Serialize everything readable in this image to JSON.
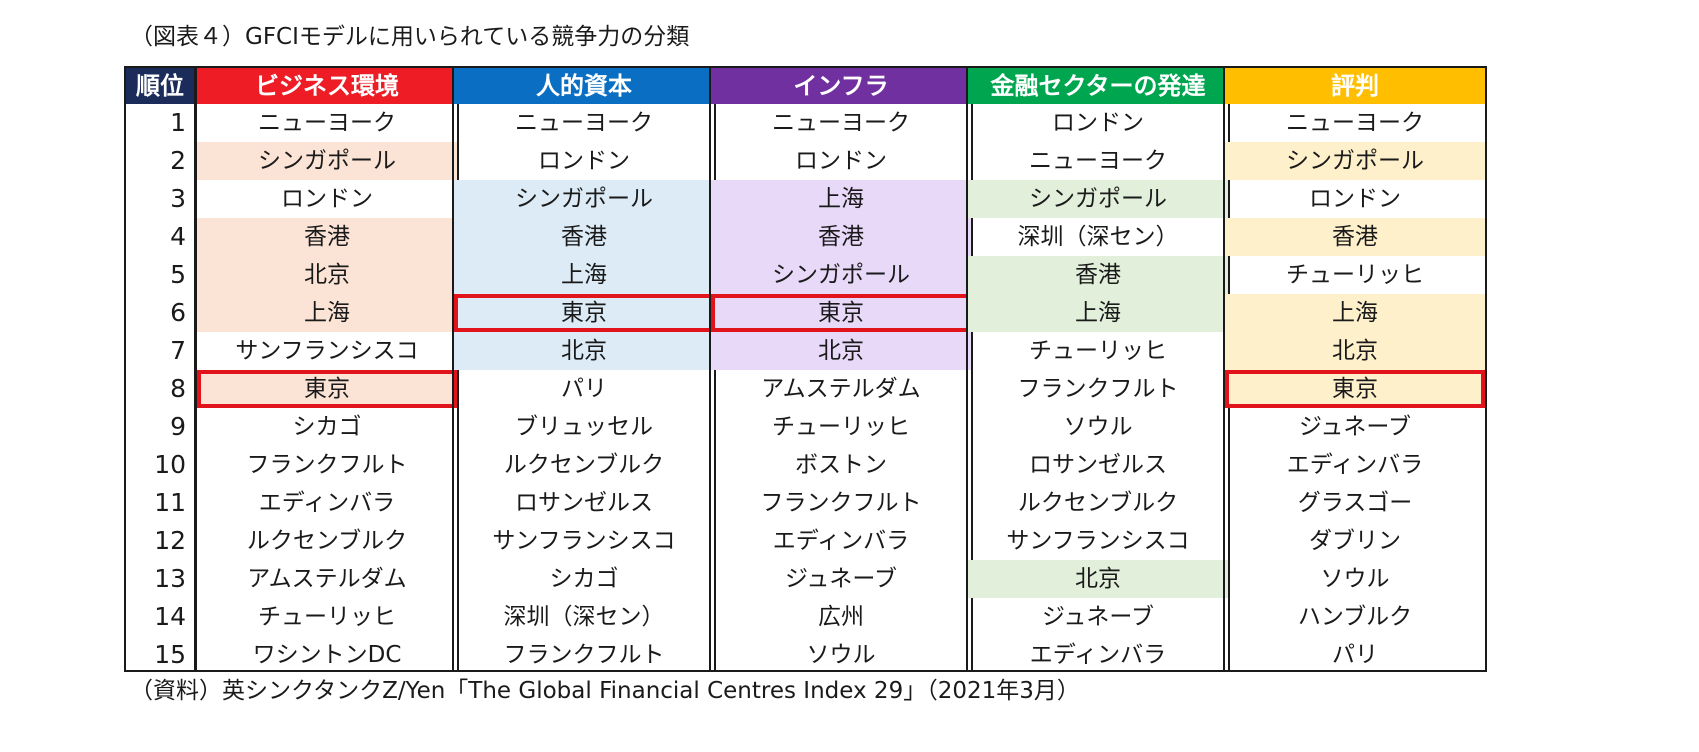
{
  "title": "（図表４）GFCIモデルに用いられている競争力の分類",
  "source": "（資料）英シンクタンクZ/Yen「The Global Financial Centres Index 29」（2021年3月）",
  "rank_header": "順位",
  "ranks": [
    "1",
    "2",
    "3",
    "4",
    "5",
    "6",
    "7",
    "8",
    "9",
    "10",
    "11",
    "12",
    "13",
    "14",
    "15"
  ],
  "columns": [
    {
      "header": "ビジネス環境",
      "header_color": "#ee1c25",
      "shade_color": "#fbe4d6",
      "shaded_ranks": [
        2,
        4,
        5,
        6,
        8
      ],
      "tokyo_rank": 8,
      "cities": [
        "ニューヨーク",
        "シンガポール",
        "ロンドン",
        "香港",
        "北京",
        "上海",
        "サンフランシスコ",
        "東京",
        "シカゴ",
        "フランクフルト",
        "エディンバラ",
        "ルクセンブルク",
        "アムステルダム",
        "チューリッヒ",
        "ワシントンDC"
      ]
    },
    {
      "header": "人的資本",
      "header_color": "#0a6fc2",
      "shade_color": "#dcebf6",
      "shaded_ranks": [
        3,
        4,
        5,
        6,
        7
      ],
      "tokyo_rank": 6,
      "cities": [
        "ニューヨーク",
        "ロンドン",
        "シンガポール",
        "香港",
        "上海",
        "東京",
        "北京",
        "パリ",
        "ブリュッセル",
        "ルクセンブルク",
        "ロサンゼルス",
        "サンフランシスコ",
        "シカゴ",
        "深圳（深セン）",
        "フランクフルト"
      ]
    },
    {
      "header": "インフラ",
      "header_color": "#7030a0",
      "shade_color": "#e8d9f9",
      "shaded_ranks": [
        3,
        4,
        5,
        6,
        7
      ],
      "tokyo_rank": 6,
      "cities": [
        "ニューヨーク",
        "ロンドン",
        "上海",
        "香港",
        "シンガポール",
        "東京",
        "北京",
        "アムステルダム",
        "チューリッヒ",
        "ボストン",
        "フランクフルト",
        "エディンバラ",
        "ジュネーブ",
        "広州",
        "ソウル"
      ]
    },
    {
      "header": "金融セクターの発達",
      "header_color": "#00a550",
      "shade_color": "#e2efda",
      "shaded_ranks": [
        3,
        5,
        6,
        13
      ],
      "tokyo_rank": null,
      "cities": [
        "ロンドン",
        "ニューヨーク",
        "シンガポール",
        "深圳（深セン）",
        "香港",
        "上海",
        "チューリッヒ",
        "フランクフルト",
        "ソウル",
        "ロサンゼルス",
        "ルクセンブルク",
        "サンフランシスコ",
        "北京",
        "ジュネーブ",
        "エディンバラ"
      ]
    },
    {
      "header": "評判",
      "header_color": "#ffbf00",
      "shade_color": "#fff0cc",
      "shaded_ranks": [
        2,
        4,
        6,
        7,
        8
      ],
      "tokyo_rank": 8,
      "cities": [
        "ニューヨーク",
        "シンガポール",
        "ロンドン",
        "香港",
        "チューリッヒ",
        "上海",
        "北京",
        "東京",
        "ジュネーブ",
        "エディンバラ",
        "グラスゴー",
        "ダブリン",
        "ソウル",
        "ハンブルク",
        "パリ"
      ]
    }
  ]
}
